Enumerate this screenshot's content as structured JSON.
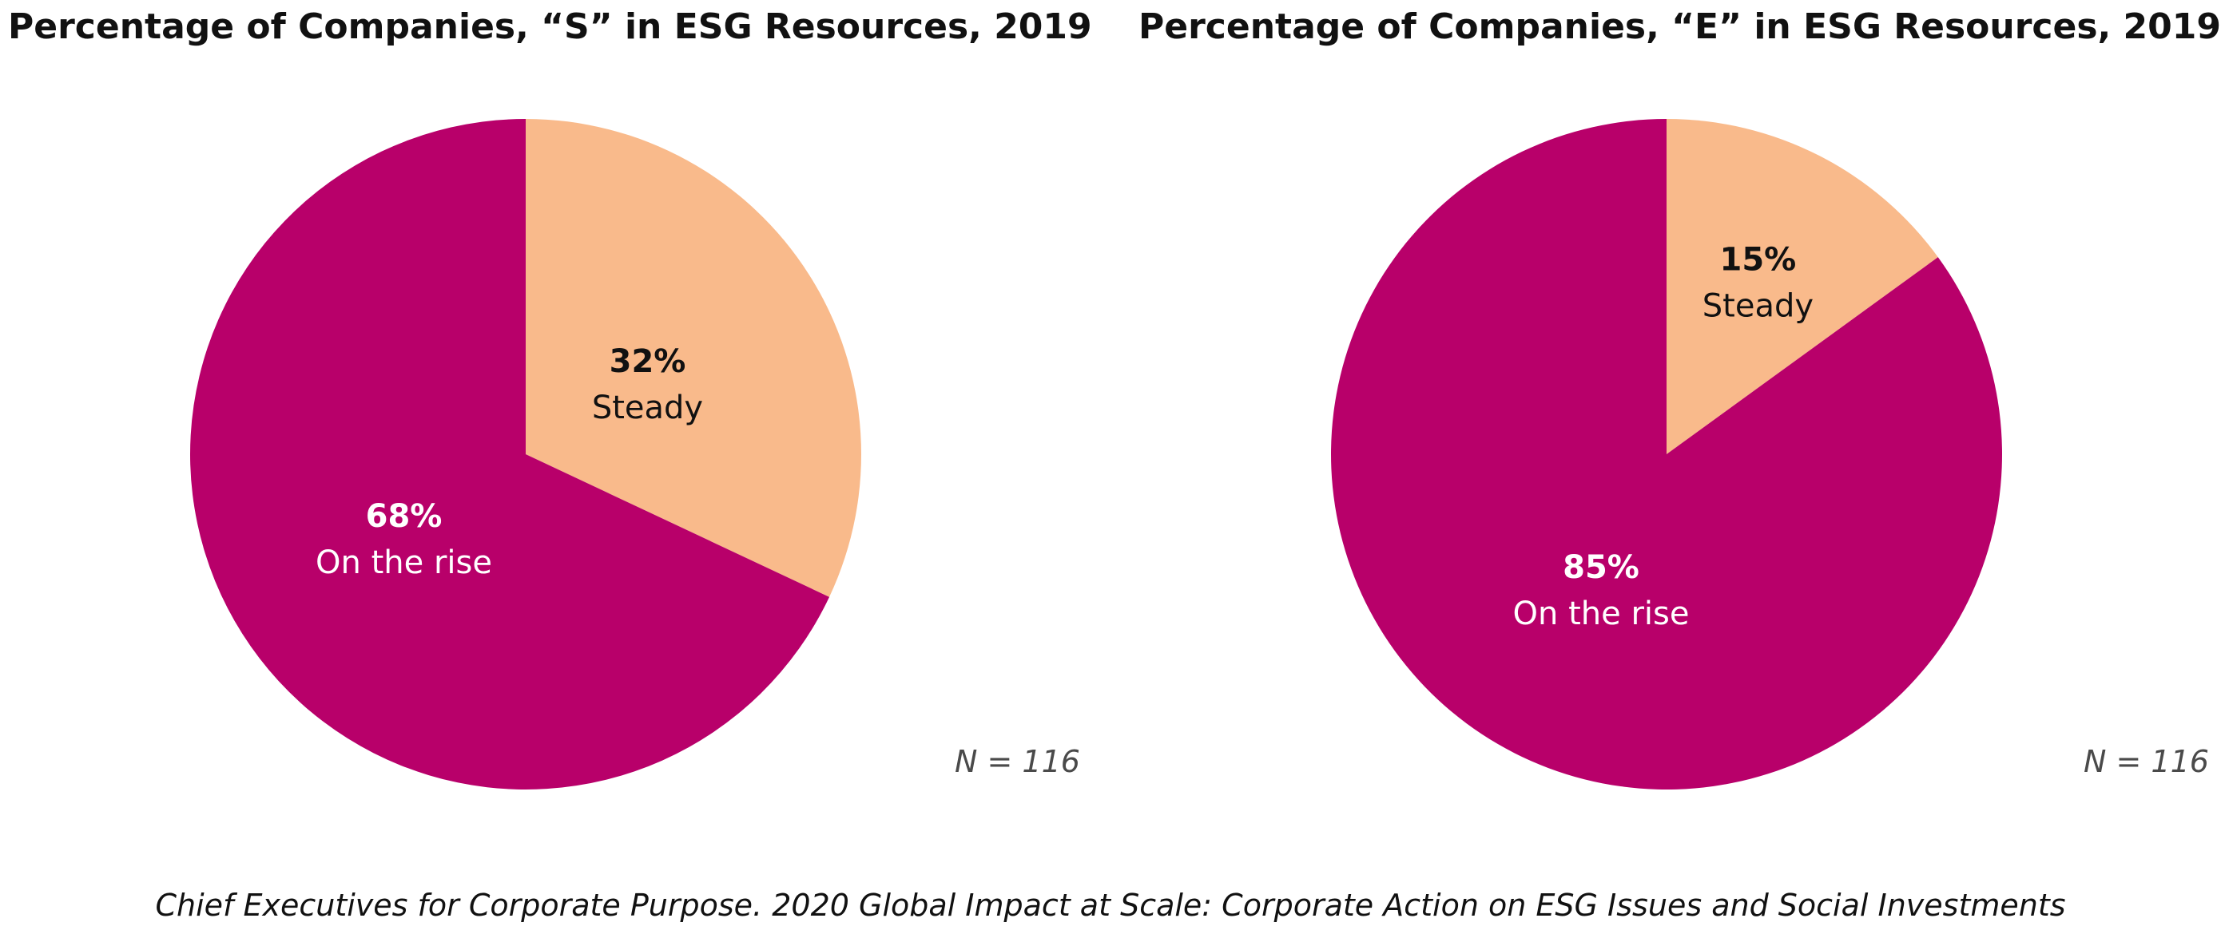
{
  "colors": {
    "on_the_rise": "#B8006A",
    "steady": "#F9BA8B"
  },
  "chart_data": [
    {
      "type": "pie",
      "title": "Percentage of Companies, “S” in ESG Resources, 2019",
      "slices": [
        {
          "label": "Steady",
          "value": 32,
          "value_label": "32%"
        },
        {
          "label": "On the rise",
          "value": 68,
          "value_label": "68%"
        }
      ],
      "note": "N = 116"
    },
    {
      "type": "pie",
      "title": "Percentage of Companies, “E” in ESG Resources, 2019",
      "slices": [
        {
          "label": "Steady",
          "value": 15,
          "value_label": "15%"
        },
        {
          "label": "On the rise",
          "value": 85,
          "value_label": "85%"
        }
      ],
      "note": "N = 116"
    }
  ],
  "source": "Chief Executives for Corporate Purpose. 2020 Global Impact at Scale: Corporate Action on ESG Issues and Social Investments"
}
